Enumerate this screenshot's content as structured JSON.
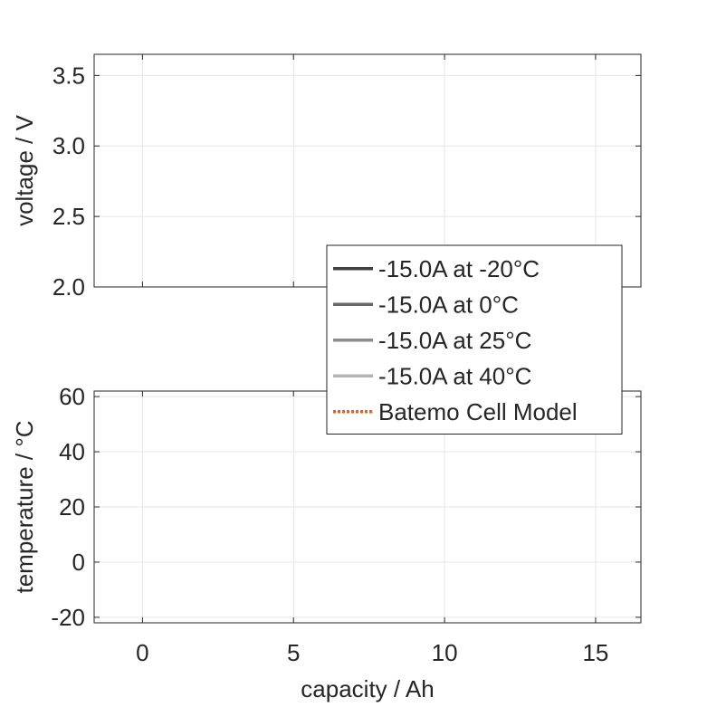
{
  "chart_data": [
    {
      "type": "line",
      "title": "",
      "xlabel": "",
      "ylabel": "voltage / V",
      "xlim": [
        -1.6,
        16.5
      ],
      "ylim": [
        2.0,
        3.65
      ],
      "xticks": [
        0,
        5,
        10,
        15
      ],
      "yticks": [
        2.0,
        2.5,
        3.0,
        3.5
      ],
      "ytick_labels": [
        "2.0",
        "2.5",
        "3.0",
        "3.5"
      ],
      "grid": true,
      "series": [],
      "legend": {
        "placement": "bottom-right",
        "entries": [
          {
            "label": "-15.0A at -20°C",
            "color": "#404040",
            "style": "solid"
          },
          {
            "label": "-15.0A at 0°C",
            "color": "#666666",
            "style": "solid"
          },
          {
            "label": "-15.0A at 25°C",
            "color": "#8c8c8c",
            "style": "solid"
          },
          {
            "label": "-15.0A at 40°C",
            "color": "#b3b3b3",
            "style": "solid"
          },
          {
            "label": "Batemo Cell Model",
            "color": "#e8601c",
            "style": "dotted"
          }
        ]
      }
    },
    {
      "type": "line",
      "title": "",
      "xlabel": "capacity / Ah",
      "ylabel": "temperature / °C",
      "xlim": [
        -1.6,
        16.5
      ],
      "ylim": [
        -22,
        62
      ],
      "xticks": [
        0,
        5,
        10,
        15
      ],
      "xtick_labels": [
        "0",
        "5",
        "10",
        "15"
      ],
      "yticks": [
        -20,
        0,
        20,
        40,
        60
      ],
      "ytick_labels": [
        "-20",
        "0",
        "20",
        "40",
        "60"
      ],
      "grid": true,
      "series": []
    }
  ]
}
